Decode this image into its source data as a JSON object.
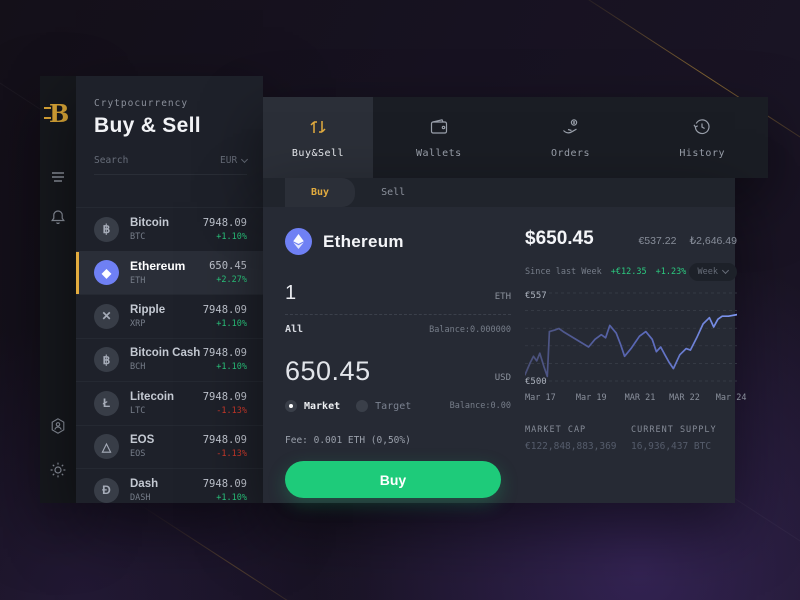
{
  "app": {
    "brand_letter": "B",
    "eyebrow": "Crytpocurrency",
    "title": "Buy & Sell"
  },
  "colors": {
    "accent_gold": "#e3ac3f",
    "buy_green": "#1ecb7a",
    "positive_green": "#2bc97f",
    "negative_red": "#d03a2b",
    "eth_blue": "#6f80f4",
    "chart_line_start": "#4a5078",
    "chart_line_end": "#7e97f2"
  },
  "icons": [
    "menu-icon",
    "bell-icon",
    "user-hexagon-icon",
    "sun-icon",
    "exchange-icon",
    "wallet-icon",
    "orders-icon",
    "history-icon",
    "search-input",
    "chevron-down-icon",
    "ethereum-icon"
  ],
  "sidebar": {
    "search_placeholder": "Search",
    "currency_selector": "EUR",
    "coins": [
      {
        "name": "Bitcoin",
        "ticker": "BTC",
        "symbol": "฿",
        "price": "7948.09",
        "change": "+1.10%",
        "direction": "up",
        "active": false
      },
      {
        "name": "Ethereum",
        "ticker": "ETH",
        "symbol": "◆",
        "price": "650.45",
        "change": "+2.27%",
        "direction": "up",
        "active": true
      },
      {
        "name": "Ripple",
        "ticker": "XRP",
        "symbol": "✕",
        "price": "7948.09",
        "change": "+1.10%",
        "direction": "up",
        "active": false
      },
      {
        "name": "Bitcoin Cash",
        "ticker": "BCH",
        "symbol": "฿",
        "price": "7948.09",
        "change": "+1.10%",
        "direction": "up",
        "active": false
      },
      {
        "name": "Litecoin",
        "ticker": "LTC",
        "symbol": "Ł",
        "price": "7948.09",
        "change": "-1.13%",
        "direction": "down",
        "active": false
      },
      {
        "name": "EOS",
        "ticker": "EOS",
        "symbol": "△",
        "price": "7948.09",
        "change": "-1.13%",
        "direction": "down",
        "active": false
      },
      {
        "name": "Dash",
        "ticker": "DASH",
        "symbol": "Đ",
        "price": "7948.09",
        "change": "+1.10%",
        "direction": "up",
        "active": false
      }
    ]
  },
  "nav": {
    "tabs": [
      {
        "label": "Buy&Sell",
        "icon": "exchange-icon",
        "active": true
      },
      {
        "label": "Wallets",
        "icon": "wallet-icon",
        "active": false
      },
      {
        "label": "Orders",
        "icon": "orders-icon",
        "active": false
      },
      {
        "label": "History",
        "icon": "history-icon",
        "active": false
      }
    ]
  },
  "trade": {
    "mode_tabs": {
      "buy": "Buy",
      "sell": "Sell"
    },
    "asset_name": "Ethereum",
    "amount_value": "1",
    "amount_unit": "ETH",
    "all_label": "All",
    "amount_balance": "Balance:0.000000",
    "price_value": "650.45",
    "price_unit": "USD",
    "order_type_market": "Market",
    "order_type_target": "Target",
    "price_balance": "Balance:0.00",
    "fee": "Fee: 0.001 ETH (0,50%)",
    "buy_button": "Buy"
  },
  "stats": {
    "price_usd": "$650.45",
    "price_eur": "€537.22",
    "price_try": "₺2,646.49",
    "since_label": "Since last Week",
    "change_abs": "+€12.35",
    "change_pct": "+1.23%",
    "range_selector": "Week",
    "market_cap_label": "MARKET CAP",
    "market_cap_value": "€122,848,883,369",
    "supply_label": "CURRENT SUPPLY",
    "supply_value": "16,936,437 BTC"
  },
  "chart_data": {
    "type": "line",
    "title": "ETH price, last week (EUR)",
    "ylim": [
      500,
      557
    ],
    "ylabel_top": "€557",
    "ylabel_bottom": "€500",
    "gridlines": 6,
    "grid_dashed": true,
    "legend": "none",
    "x_ticks": [
      "Mar 17",
      "Mar 19",
      "MAR 21",
      "MAR 22",
      "Mar 24"
    ],
    "x_tick_positions_pct": [
      0,
      24,
      47,
      68,
      90
    ],
    "points": [
      [
        0,
        504
      ],
      [
        2.5,
        512
      ],
      [
        4,
        516
      ],
      [
        5.5,
        513
      ],
      [
        7,
        518
      ],
      [
        9,
        509
      ],
      [
        10.5,
        503
      ],
      [
        11.5,
        532
      ],
      [
        14,
        533
      ],
      [
        16,
        534
      ],
      [
        18,
        532
      ],
      [
        30,
        522
      ],
      [
        33,
        527
      ],
      [
        36,
        530
      ],
      [
        38,
        528
      ],
      [
        40,
        536
      ],
      [
        43,
        531
      ],
      [
        45,
        524
      ],
      [
        47,
        516
      ],
      [
        50,
        521
      ],
      [
        54,
        529
      ],
      [
        57,
        532
      ],
      [
        60,
        527
      ],
      [
        62,
        519
      ],
      [
        64,
        522
      ],
      [
        66,
        517
      ],
      [
        68,
        512
      ],
      [
        70,
        508
      ],
      [
        73,
        517
      ],
      [
        76,
        521
      ],
      [
        78,
        520
      ],
      [
        81,
        528
      ],
      [
        84,
        537
      ],
      [
        87,
        541
      ],
      [
        89,
        535
      ],
      [
        91,
        540
      ],
      [
        93,
        542
      ],
      [
        96,
        542
      ],
      [
        100,
        543
      ]
    ]
  }
}
